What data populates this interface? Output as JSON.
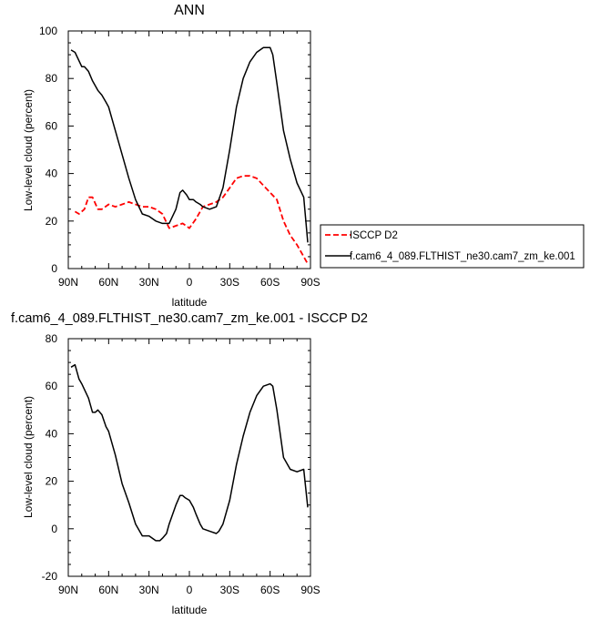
{
  "chart_data": [
    {
      "type": "line",
      "title": "ANN",
      "xlabel": "latitude",
      "ylabel": "Low-level cloud (percent)",
      "xlim": [
        90,
        -90
      ],
      "ylim": [
        0,
        100
      ],
      "xticks": [
        "90N",
        "60N",
        "30N",
        "0",
        "30S",
        "60S",
        "90S"
      ],
      "yticks": [
        "0",
        "20",
        "40",
        "60",
        "80",
        "100"
      ],
      "legend_position": "right",
      "series": [
        {
          "name": "ISCCP D2",
          "color": "#ff0000",
          "dash": "dashed",
          "x": [
            85,
            82,
            78,
            75,
            72,
            68,
            65,
            60,
            55,
            50,
            45,
            40,
            35,
            30,
            25,
            20,
            15,
            10,
            5,
            0,
            -5,
            -10,
            -15,
            -20,
            -25,
            -30,
            -35,
            -40,
            -45,
            -50,
            -55,
            -60,
            -65,
            -70,
            -75,
            -80,
            -85,
            -88
          ],
          "y": [
            24,
            23,
            25,
            30,
            30,
            25,
            25,
            27,
            26,
            27,
            28,
            27,
            26,
            26,
            25,
            23,
            17,
            18,
            19,
            17,
            21,
            26,
            27,
            28,
            30,
            34,
            38,
            39,
            39,
            38,
            35,
            32,
            29,
            20,
            14,
            10,
            5,
            2
          ]
        },
        {
          "name": "f.cam6_4_089.FLTHIST_ne30.cam7_zm_ke.001",
          "color": "#000000",
          "dash": "solid",
          "x": [
            88,
            85,
            80,
            78,
            75,
            72,
            68,
            65,
            62,
            60,
            55,
            50,
            45,
            40,
            35,
            30,
            25,
            20,
            15,
            10,
            7,
            5,
            2,
            0,
            -3,
            -5,
            -8,
            -10,
            -15,
            -20,
            -25,
            -30,
            -35,
            -40,
            -45,
            -50,
            -55,
            -60,
            -62,
            -65,
            -70,
            -75,
            -80,
            -85,
            -88
          ],
          "y": [
            92,
            91,
            85,
            85,
            83,
            79,
            75,
            73,
            70,
            68,
            58,
            48,
            38,
            29,
            23,
            22,
            20,
            19,
            19,
            25,
            32,
            33,
            31,
            29,
            29,
            28,
            27,
            26,
            25,
            26,
            34,
            50,
            68,
            80,
            87,
            91,
            93,
            93,
            90,
            78,
            58,
            46,
            36,
            30,
            11
          ]
        }
      ]
    },
    {
      "type": "line",
      "title": "f.cam6_4_089.FLTHIST_ne30.cam7_zm_ke.001 - ISCCP D2",
      "xlabel": "latitude",
      "ylabel": "Low-level cloud (percent)",
      "xlim": [
        90,
        -90
      ],
      "ylim": [
        -20,
        80
      ],
      "xticks": [
        "90N",
        "60N",
        "30N",
        "0",
        "30S",
        "60S",
        "90S"
      ],
      "yticks": [
        "-20",
        "0",
        "20",
        "40",
        "60",
        "80"
      ],
      "series": [
        {
          "color": "#000000",
          "dash": "solid",
          "x": [
            88,
            85,
            82,
            80,
            75,
            72,
            70,
            68,
            65,
            62,
            60,
            55,
            50,
            45,
            40,
            35,
            30,
            25,
            22,
            20,
            17,
            15,
            10,
            7,
            5,
            3,
            0,
            -3,
            -5,
            -8,
            -10,
            -15,
            -20,
            -22,
            -25,
            -30,
            -35,
            -40,
            -45,
            -50,
            -55,
            -60,
            -62,
            -65,
            -70,
            -75,
            -80,
            -85,
            -88
          ],
          "y": [
            68,
            69,
            63,
            61,
            55,
            49,
            49,
            50,
            48,
            43,
            41,
            31,
            19,
            11,
            2,
            -3,
            -3,
            -5,
            -5,
            -4,
            -2,
            2,
            10,
            14,
            14,
            13,
            12,
            9,
            6,
            2,
            0,
            -1,
            -2,
            -1,
            2,
            12,
            27,
            39,
            49,
            56,
            60,
            61,
            60,
            50,
            30,
            25,
            24,
            25,
            9
          ]
        }
      ]
    }
  ]
}
